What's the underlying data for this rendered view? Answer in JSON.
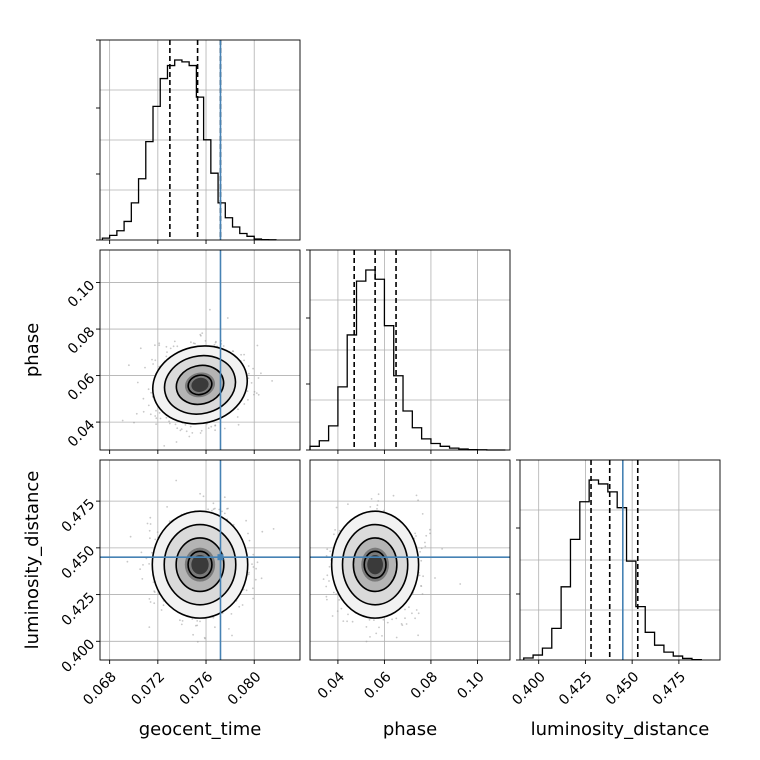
{
  "chart_data": {
    "type": "corner",
    "parameters": [
      "geocent_time",
      "phase",
      "luminosity_distance"
    ],
    "truths": {
      "geocent_time": 0.0772,
      "phase": null,
      "luminosity_distance": 0.445
    },
    "grid": true,
    "axes": {
      "geocent_time": {
        "lim": [
          0.0672,
          0.0838
        ],
        "ticks": [
          0.068,
          0.072,
          0.076,
          0.08
        ],
        "tick_labels": [
          "0.068",
          "0.072",
          "0.076",
          "0.080"
        ],
        "quantiles": [
          0.073,
          0.0753,
          0.0772
        ]
      },
      "phase": {
        "lim": [
          0.028,
          0.114
        ],
        "ticks": [
          0.04,
          0.06,
          0.08,
          0.1
        ],
        "tick_labels": [
          "0.04",
          "0.06",
          "0.08",
          "0.10"
        ],
        "quantiles": [
          0.047,
          0.056,
          0.065
        ]
      },
      "luminosity_distance": {
        "lim": [
          0.39,
          0.497
        ],
        "ticks": [
          0.4,
          0.425,
          0.45,
          0.475
        ],
        "tick_labels": [
          "0.400",
          "0.425",
          "0.450",
          "0.475"
        ],
        "quantiles": [
          0.428,
          0.438,
          0.453
        ]
      }
    },
    "hist1d": {
      "geocent_time": {
        "bins": [
          0.0674,
          0.068,
          0.0686,
          0.0692,
          0.0698,
          0.0704,
          0.071,
          0.0716,
          0.0722,
          0.0728,
          0.0734,
          0.074,
          0.0746,
          0.0752,
          0.0758,
          0.0764,
          0.077,
          0.0776,
          0.0782,
          0.0788,
          0.0794,
          0.08,
          0.0806,
          0.0812,
          0.0818
        ],
        "counts": [
          0.01,
          0.025,
          0.05,
          0.1,
          0.2,
          0.33,
          0.53,
          0.72,
          0.87,
          0.94,
          0.97,
          0.96,
          0.94,
          0.77,
          0.54,
          0.36,
          0.2,
          0.12,
          0.07,
          0.035,
          0.02,
          0.005,
          0.002,
          0.001
        ]
      },
      "phase": {
        "bins": [
          0.028,
          0.032,
          0.036,
          0.04,
          0.044,
          0.048,
          0.052,
          0.056,
          0.06,
          0.064,
          0.068,
          0.072,
          0.076,
          0.08,
          0.084,
          0.088,
          0.092,
          0.096,
          0.1,
          0.104,
          0.108,
          0.112
        ],
        "counts": [
          0.02,
          0.05,
          0.13,
          0.34,
          0.62,
          0.91,
          0.97,
          0.92,
          0.67,
          0.4,
          0.21,
          0.12,
          0.06,
          0.035,
          0.02,
          0.01,
          0.005,
          0.002,
          0.001,
          0.0,
          0.0
        ]
      },
      "luminosity_distance": {
        "bins": [
          0.392,
          0.397,
          0.402,
          0.407,
          0.412,
          0.417,
          0.422,
          0.427,
          0.432,
          0.437,
          0.442,
          0.447,
          0.452,
          0.457,
          0.462,
          0.467,
          0.472,
          0.477,
          0.482,
          0.487
        ],
        "counts": [
          0.01,
          0.025,
          0.06,
          0.16,
          0.37,
          0.61,
          0.8,
          0.91,
          0.89,
          0.85,
          0.77,
          0.5,
          0.27,
          0.14,
          0.075,
          0.04,
          0.02,
          0.008,
          0.002
        ]
      }
    },
    "hist2d": [
      {
        "x": "geocent_time",
        "y": "phase",
        "center": [
          0.0755,
          0.056
        ],
        "sigma": [
          0.0018,
          0.0075
        ],
        "rho": -0.3
      },
      {
        "x": "geocent_time",
        "y": "luminosity_distance",
        "center": [
          0.0755,
          0.441
        ],
        "sigma": [
          0.0018,
          0.013
        ],
        "rho": 0.0
      },
      {
        "x": "phase",
        "y": "luminosity_distance",
        "center": [
          0.056,
          0.441
        ],
        "sigma": [
          0.0085,
          0.013
        ],
        "rho": 0.0
      }
    ],
    "colors": {
      "truth": "#4682b4",
      "hist": "#000000",
      "grid": "#b0b0b0"
    }
  }
}
